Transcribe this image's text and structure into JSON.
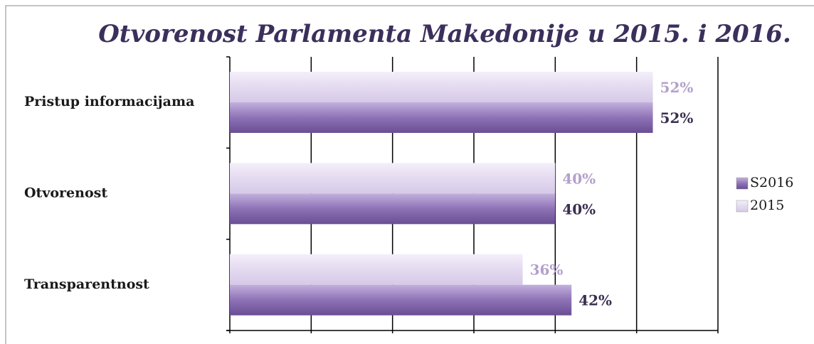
{
  "chart_data": {
    "type": "bar",
    "orientation": "horizontal",
    "title": "Otvorenost Parlamenta Makedonije u 2015. i 2016.",
    "categories": [
      "Pristup informacijama",
      "Otvorenost",
      "Transparentnost"
    ],
    "series": [
      {
        "name": "S2016",
        "color": "#7d5fa6",
        "values": [
          52,
          40,
          42
        ],
        "value_labels": [
          "52%",
          "40%",
          "42%"
        ],
        "label_color": "#3a2e50"
      },
      {
        "name": "2015",
        "color": "#e4daf0",
        "values": [
          52,
          40,
          36
        ],
        "value_labels": [
          "52%",
          "40%",
          "36%"
        ],
        "label_color": "#b3a0cc"
      }
    ],
    "xlim": [
      0,
      60
    ],
    "xticks": [
      0,
      10,
      20,
      30,
      40,
      50,
      60
    ],
    "grid": true,
    "legend": "right"
  }
}
